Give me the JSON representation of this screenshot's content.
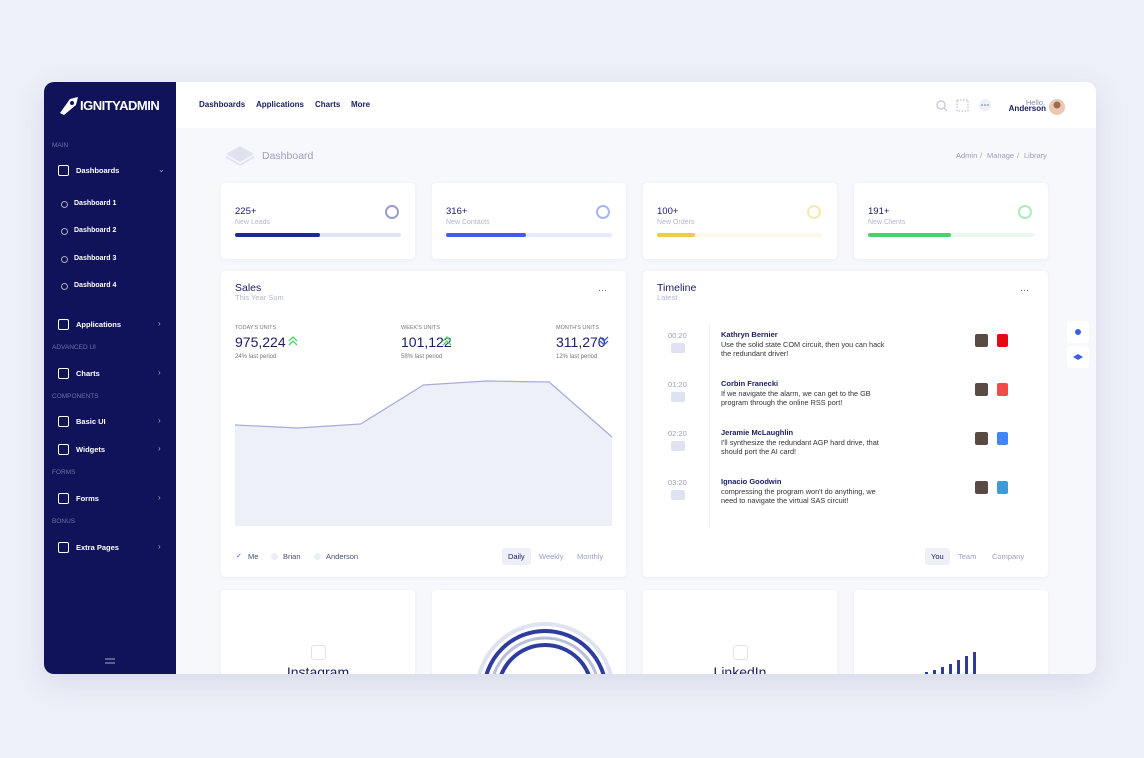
{
  "brand": "IGNITYADMIN",
  "nav": [
    "Dashboards",
    "Applications",
    "Charts",
    "More"
  ],
  "user": {
    "greeting": "Hello,",
    "name": "Anderson"
  },
  "sidebar": [
    {
      "section": "MAIN",
      "items": [
        {
          "label": "Dashboards",
          "children": [
            "Dashboard 1",
            "Dashboard 2",
            "Dashboard 3",
            "Dashboard 4"
          ]
        },
        {
          "label": "Applications"
        }
      ]
    },
    {
      "section": "ADVANCED UI",
      "items": [
        {
          "label": "Charts"
        }
      ]
    },
    {
      "section": "COMPONENTS",
      "items": [
        {
          "label": "Basic UI"
        },
        {
          "label": "Widgets"
        }
      ]
    },
    {
      "section": "FORMS",
      "items": [
        {
          "label": "Forms"
        }
      ]
    },
    {
      "section": "BONUS",
      "items": [
        {
          "label": "Extra Pages"
        }
      ]
    }
  ],
  "page": {
    "title": "Dashboard",
    "breadcrumb": [
      "Admin",
      "Manage",
      "Library"
    ]
  },
  "stats": [
    {
      "value": "225+",
      "label": "New Leads",
      "progress": 51,
      "color": "#1d2b8f"
    },
    {
      "value": "316+",
      "label": "New Contacts",
      "progress": 48,
      "color": "#3f5ee8"
    },
    {
      "value": "100+",
      "label": "New Orders",
      "progress": 23,
      "color": "#f2c94c"
    },
    {
      "value": "191+",
      "label": "New Clients",
      "progress": 50,
      "color": "#4cd06a"
    }
  ],
  "sales": {
    "title": "Sales",
    "subtitle": "This Year Sum",
    "metrics": [
      {
        "label": "TODAY'S UNITS",
        "value": "975,224",
        "change": "24% last period"
      },
      {
        "label": "WEEK'S UNITS",
        "value": "101,122",
        "change": "58% last period"
      },
      {
        "label": "MONTH'S UNITS",
        "value": "311,270",
        "change": "12% last period"
      }
    ],
    "chart": [
      101,
      98,
      102,
      141,
      145,
      144,
      89
    ],
    "legend": [
      "Me",
      "Brian",
      "Anderson"
    ],
    "tabs": [
      "Daily",
      "Weekly",
      "Monthly"
    ]
  },
  "timeline": {
    "title": "Timeline",
    "subtitle": "Latest",
    "items": [
      {
        "time": "00:20",
        "name": "Kathryn Bernier",
        "text": [
          "Use the solid state COM circuit, then you can hack",
          "the redundant driver!"
        ]
      },
      {
        "time": "01:20",
        "name": "Corbin Franecki",
        "text": [
          "If we navigate the alarm, we can get to the GB",
          "program through the online RSS port!"
        ]
      },
      {
        "time": "02:20",
        "name": "Jeramie McLaughlin",
        "text": [
          "I'll synthesize the redundant AGP hard drive, that",
          "should port the AI card!"
        ]
      },
      {
        "time": "03:20",
        "name": "Ignacio Goodwin",
        "text": [
          "compressing the program won't do anything, we",
          "need to navigate the virtual SAS circuit!"
        ]
      }
    ],
    "tabs": [
      "You",
      "Team",
      "Company"
    ]
  },
  "widgets": [
    "Instagram",
    "LinkedIn"
  ]
}
